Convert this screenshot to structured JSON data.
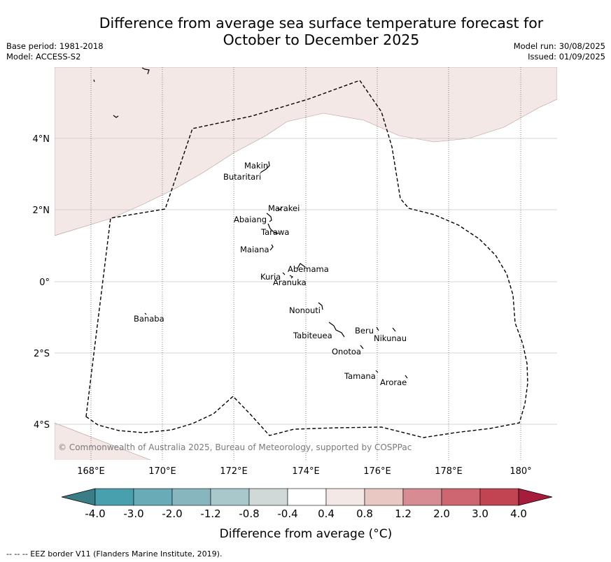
{
  "title_line1": "Difference from average sea surface temperature forecast for",
  "title_line2": "October to December 2025",
  "meta_left": {
    "base_period": "Base period: 1981-2018",
    "model": "Model: ACCESS-S2"
  },
  "meta_right": {
    "model_run": "Model run: 30/08/2025",
    "issued": "Issued: 01/09/2025"
  },
  "map": {
    "lon_ticks": [
      "168°E",
      "170°E",
      "172°E",
      "174°E",
      "176°E",
      "178°E",
      "180°"
    ],
    "lat_ticks": [
      "4°N",
      "2°N",
      "0°",
      "2°S",
      "4°S"
    ],
    "islands": [
      "Makin",
      "Butaritari",
      "Marakei",
      "Abaiang",
      "Tarawa",
      "Maiana",
      "Abemama",
      "Kuria",
      "Aranuka",
      "Banaba",
      "Nonouti",
      "Tabiteuea",
      "Beru",
      "Nikunau",
      "Onotoa",
      "Tamana",
      "Arorae"
    ],
    "copyright": "© Commonwealth of Australia 2025, Bureau of Meteorology, supported by COSPPac",
    "anomaly_region_color": "#f4e8e7"
  },
  "colorbar": {
    "tick_labels": [
      "-4.0",
      "-3.0",
      "-2.0",
      "-1.2",
      "-0.8",
      "-0.4",
      "0.4",
      "0.8",
      "1.2",
      "2.0",
      "3.0",
      "4.0"
    ],
    "colors": [
      "#3b7d87",
      "#48a0ae",
      "#69abb6",
      "#88b6bf",
      "#a8c8cc",
      "#d1d8d8",
      "#ffffff",
      "#f4e8e7",
      "#e9c7c2",
      "#d78b92",
      "#cd6670",
      "#c24453",
      "#a51c3c"
    ],
    "label": "Difference from average (°C)"
  },
  "footnote": "--  --  -- EEZ border V11 (Flanders Marine Institute, 2019)."
}
